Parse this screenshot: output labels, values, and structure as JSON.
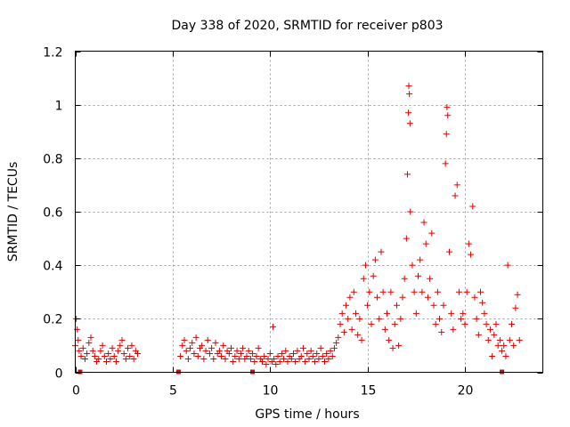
{
  "chart_data": {
    "type": "scatter",
    "title": "Day 338 of 2020, SRMTID for receiver p803",
    "xlabel": "GPS time / hours",
    "ylabel": "SRMTID / TECUs",
    "xlim": [
      0,
      24
    ],
    "ylim": [
      0,
      1.2
    ],
    "xticks": [
      0,
      5,
      10,
      15,
      20
    ],
    "xtick_labels": [
      "0",
      "5",
      "10",
      "15",
      "20"
    ],
    "yticks": [
      0,
      0.2,
      0.4,
      0.6,
      0.8,
      1.0,
      1.2
    ],
    "ytick_labels": [
      "0",
      "0.2",
      "0.4",
      "0.6",
      "0.8",
      "1",
      "1.2"
    ],
    "grid": true,
    "marker": "+",
    "color": "#e00000",
    "gap_markers_x": [
      0.25,
      5.3,
      9.1,
      21.9
    ],
    "series": [
      {
        "name": "SRMTID",
        "points": [
          [
            0.0,
            0.1
          ],
          [
            0.05,
            0.2
          ],
          [
            0.1,
            0.16
          ],
          [
            0.15,
            0.12
          ],
          [
            0.2,
            0.08
          ],
          [
            0.3,
            0.06
          ],
          [
            0.4,
            0.09
          ],
          [
            0.5,
            0.05
          ],
          [
            0.6,
            0.07
          ],
          [
            0.7,
            0.11
          ],
          [
            0.8,
            0.13
          ],
          [
            0.9,
            0.08
          ],
          [
            1.0,
            0.06
          ],
          [
            1.1,
            0.04
          ],
          [
            1.2,
            0.05
          ],
          [
            1.3,
            0.08
          ],
          [
            1.4,
            0.1
          ],
          [
            1.5,
            0.06
          ],
          [
            1.6,
            0.04
          ],
          [
            1.7,
            0.07
          ],
          [
            1.8,
            0.05
          ],
          [
            1.9,
            0.09
          ],
          [
            2.0,
            0.06
          ],
          [
            2.1,
            0.04
          ],
          [
            2.2,
            0.08
          ],
          [
            2.3,
            0.1
          ],
          [
            2.4,
            0.12
          ],
          [
            2.5,
            0.07
          ],
          [
            2.6,
            0.05
          ],
          [
            2.7,
            0.09
          ],
          [
            2.8,
            0.06
          ],
          [
            2.9,
            0.1
          ],
          [
            3.0,
            0.05
          ],
          [
            3.1,
            0.08
          ],
          [
            3.2,
            0.07
          ],
          [
            5.4,
            0.06
          ],
          [
            5.5,
            0.1
          ],
          [
            5.6,
            0.12
          ],
          [
            5.7,
            0.08
          ],
          [
            5.8,
            0.05
          ],
          [
            5.9,
            0.09
          ],
          [
            6.0,
            0.11
          ],
          [
            6.1,
            0.07
          ],
          [
            6.2,
            0.13
          ],
          [
            6.3,
            0.06
          ],
          [
            6.4,
            0.09
          ],
          [
            6.5,
            0.1
          ],
          [
            6.6,
            0.05
          ],
          [
            6.7,
            0.08
          ],
          [
            6.8,
            0.12
          ],
          [
            6.9,
            0.07
          ],
          [
            7.0,
            0.09
          ],
          [
            7.1,
            0.05
          ],
          [
            7.2,
            0.11
          ],
          [
            7.3,
            0.07
          ],
          [
            7.4,
            0.08
          ],
          [
            7.5,
            0.06
          ],
          [
            7.6,
            0.1
          ],
          [
            7.7,
            0.05
          ],
          [
            7.8,
            0.08
          ],
          [
            7.9,
            0.07
          ],
          [
            8.0,
            0.09
          ],
          [
            8.1,
            0.04
          ],
          [
            8.2,
            0.06
          ],
          [
            8.3,
            0.08
          ],
          [
            8.4,
            0.05
          ],
          [
            8.5,
            0.07
          ],
          [
            8.6,
            0.09
          ],
          [
            8.7,
            0.05
          ],
          [
            8.8,
            0.06
          ],
          [
            8.9,
            0.08
          ],
          [
            9.0,
            0.05
          ],
          [
            9.1,
            0.07
          ],
          [
            9.2,
            0.04
          ],
          [
            9.3,
            0.06
          ],
          [
            9.4,
            0.09
          ],
          [
            9.5,
            0.05
          ],
          [
            9.6,
            0.04
          ],
          [
            9.7,
            0.06
          ],
          [
            9.8,
            0.03
          ],
          [
            9.9,
            0.05
          ],
          [
            10.0,
            0.07
          ],
          [
            10.1,
            0.04
          ],
          [
            10.15,
            0.17
          ],
          [
            10.2,
            0.05
          ],
          [
            10.3,
            0.03
          ],
          [
            10.4,
            0.06
          ],
          [
            10.5,
            0.04
          ],
          [
            10.6,
            0.07
          ],
          [
            10.7,
            0.05
          ],
          [
            10.8,
            0.08
          ],
          [
            10.9,
            0.04
          ],
          [
            11.0,
            0.06
          ],
          [
            11.1,
            0.05
          ],
          [
            11.2,
            0.07
          ],
          [
            11.3,
            0.04
          ],
          [
            11.4,
            0.08
          ],
          [
            11.5,
            0.05
          ],
          [
            11.6,
            0.06
          ],
          [
            11.7,
            0.09
          ],
          [
            11.8,
            0.04
          ],
          [
            11.9,
            0.07
          ],
          [
            12.0,
            0.05
          ],
          [
            12.1,
            0.08
          ],
          [
            12.2,
            0.06
          ],
          [
            12.3,
            0.04
          ],
          [
            12.4,
            0.07
          ],
          [
            12.5,
            0.05
          ],
          [
            12.6,
            0.09
          ],
          [
            12.7,
            0.06
          ],
          [
            12.8,
            0.04
          ],
          [
            12.9,
            0.07
          ],
          [
            13.0,
            0.05
          ],
          [
            13.1,
            0.08
          ],
          [
            13.2,
            0.06
          ],
          [
            13.3,
            0.09
          ],
          [
            13.4,
            0.11
          ],
          [
            13.5,
            0.13
          ],
          [
            13.6,
            0.18
          ],
          [
            13.7,
            0.22
          ],
          [
            13.8,
            0.15
          ],
          [
            13.9,
            0.25
          ],
          [
            14.0,
            0.2
          ],
          [
            14.1,
            0.28
          ],
          [
            14.2,
            0.16
          ],
          [
            14.3,
            0.3
          ],
          [
            14.4,
            0.22
          ],
          [
            14.5,
            0.14
          ],
          [
            14.6,
            0.2
          ],
          [
            14.7,
            0.12
          ],
          [
            14.8,
            0.35
          ],
          [
            14.9,
            0.4
          ],
          [
            15.0,
            0.25
          ],
          [
            15.1,
            0.3
          ],
          [
            15.2,
            0.18
          ],
          [
            15.3,
            0.36
          ],
          [
            15.4,
            0.42
          ],
          [
            15.5,
            0.28
          ],
          [
            15.6,
            0.2
          ],
          [
            15.7,
            0.45
          ],
          [
            15.8,
            0.3
          ],
          [
            15.9,
            0.16
          ],
          [
            16.0,
            0.22
          ],
          [
            16.1,
            0.12
          ],
          [
            16.2,
            0.3
          ],
          [
            16.3,
            0.09
          ],
          [
            16.4,
            0.18
          ],
          [
            16.5,
            0.25
          ],
          [
            16.6,
            0.1
          ],
          [
            16.7,
            0.2
          ],
          [
            16.8,
            0.28
          ],
          [
            16.9,
            0.35
          ],
          [
            17.0,
            0.5
          ],
          [
            17.05,
            0.74
          ],
          [
            17.1,
            0.97
          ],
          [
            17.12,
            1.07
          ],
          [
            17.15,
            1.04
          ],
          [
            17.18,
            0.93
          ],
          [
            17.2,
            0.6
          ],
          [
            17.3,
            0.4
          ],
          [
            17.4,
            0.3
          ],
          [
            17.5,
            0.22
          ],
          [
            17.6,
            0.36
          ],
          [
            17.7,
            0.42
          ],
          [
            17.8,
            0.3
          ],
          [
            17.9,
            0.56
          ],
          [
            18.0,
            0.48
          ],
          [
            18.1,
            0.28
          ],
          [
            18.2,
            0.35
          ],
          [
            18.3,
            0.52
          ],
          [
            18.4,
            0.25
          ],
          [
            18.5,
            0.18
          ],
          [
            18.6,
            0.3
          ],
          [
            18.7,
            0.2
          ],
          [
            18.8,
            0.15
          ],
          [
            18.9,
            0.25
          ],
          [
            19.0,
            0.78
          ],
          [
            19.05,
            0.89
          ],
          [
            19.08,
            0.99
          ],
          [
            19.12,
            0.96
          ],
          [
            19.2,
            0.45
          ],
          [
            19.3,
            0.22
          ],
          [
            19.4,
            0.16
          ],
          [
            19.5,
            0.66
          ],
          [
            19.6,
            0.7
          ],
          [
            19.7,
            0.3
          ],
          [
            19.8,
            0.2
          ],
          [
            19.9,
            0.22
          ],
          [
            20.0,
            0.18
          ],
          [
            20.1,
            0.3
          ],
          [
            20.2,
            0.48
          ],
          [
            20.3,
            0.44
          ],
          [
            20.4,
            0.62
          ],
          [
            20.5,
            0.28
          ],
          [
            20.6,
            0.2
          ],
          [
            20.7,
            0.14
          ],
          [
            20.8,
            0.3
          ],
          [
            20.9,
            0.26
          ],
          [
            21.0,
            0.22
          ],
          [
            21.1,
            0.18
          ],
          [
            21.2,
            0.12
          ],
          [
            21.3,
            0.16
          ],
          [
            21.4,
            0.06
          ],
          [
            21.5,
            0.14
          ],
          [
            21.6,
            0.18
          ],
          [
            21.7,
            0.1
          ],
          [
            21.8,
            0.12
          ],
          [
            21.9,
            0.08
          ],
          [
            22.0,
            0.1
          ],
          [
            22.1,
            0.06
          ],
          [
            22.2,
            0.4
          ],
          [
            22.3,
            0.12
          ],
          [
            22.4,
            0.18
          ],
          [
            22.5,
            0.1
          ],
          [
            22.6,
            0.24
          ],
          [
            22.7,
            0.29
          ],
          [
            22.8,
            0.12
          ]
        ]
      }
    ]
  }
}
